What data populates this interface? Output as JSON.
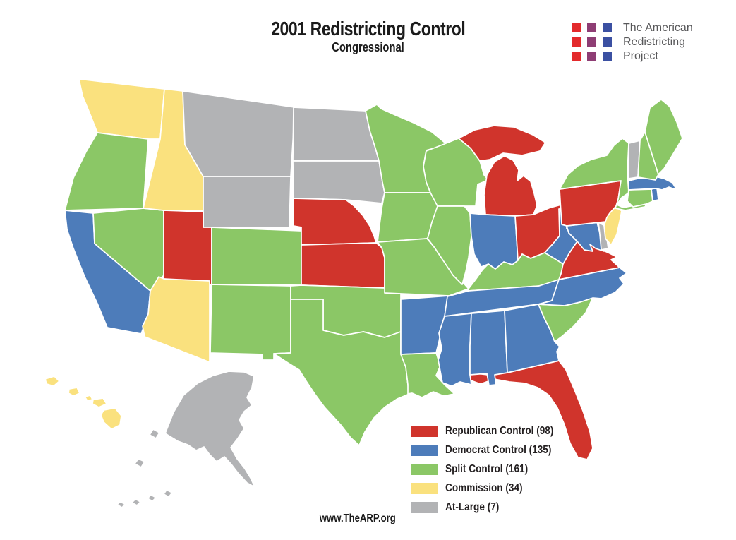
{
  "header": {
    "title": "2001 Redistricting Control",
    "subtitle": "Congressional"
  },
  "logo": {
    "line1": "The American",
    "line2": "Redistricting",
    "line3": "Project",
    "square_colors": [
      "#e32a2c",
      "#8e3d74",
      "#3b50a2"
    ],
    "text_color": "#58585a"
  },
  "footer": {
    "website": "www.TheARP.org"
  },
  "categories": {
    "republican": {
      "label": "Republican Control",
      "seats": 98,
      "color": "#d0342c"
    },
    "democrat": {
      "label": "Democrat Control",
      "seats": 135,
      "color": "#4d7cba"
    },
    "split": {
      "label": "Split Control",
      "seats": 161,
      "color": "#8bc766"
    },
    "commission": {
      "label": "Commission",
      "seats": 34,
      "color": "#fae17e"
    },
    "atlarge": {
      "label": "At-Large",
      "seats": 7,
      "color": "#b2b3b5"
    }
  },
  "legend": {
    "items": [
      {
        "key": "republican",
        "label": "Republican Control (98)"
      },
      {
        "key": "democrat",
        "label": "Democrat Control (135)"
      },
      {
        "key": "split",
        "label": "Split Control (161)"
      },
      {
        "key": "commission",
        "label": "Commission (34)"
      },
      {
        "key": "atlarge",
        "label": "At-Large (7)"
      }
    ]
  },
  "map": {
    "states": [
      {
        "id": "WA",
        "name": "Washington",
        "category": "commission"
      },
      {
        "id": "OR",
        "name": "Oregon",
        "category": "split"
      },
      {
        "id": "CA",
        "name": "California",
        "category": "democrat"
      },
      {
        "id": "NV",
        "name": "Nevada",
        "category": "split"
      },
      {
        "id": "ID",
        "name": "Idaho",
        "category": "commission"
      },
      {
        "id": "MT",
        "name": "Montana",
        "category": "atlarge"
      },
      {
        "id": "WY",
        "name": "Wyoming",
        "category": "atlarge"
      },
      {
        "id": "UT",
        "name": "Utah",
        "category": "republican"
      },
      {
        "id": "CO",
        "name": "Colorado",
        "category": "split"
      },
      {
        "id": "AZ",
        "name": "Arizona",
        "category": "commission"
      },
      {
        "id": "NM",
        "name": "New Mexico",
        "category": "split"
      },
      {
        "id": "ND",
        "name": "North Dakota",
        "category": "atlarge"
      },
      {
        "id": "SD",
        "name": "South Dakota",
        "category": "atlarge"
      },
      {
        "id": "NE",
        "name": "Nebraska",
        "category": "republican"
      },
      {
        "id": "KS",
        "name": "Kansas",
        "category": "republican"
      },
      {
        "id": "OK",
        "name": "Oklahoma",
        "category": "split"
      },
      {
        "id": "TX",
        "name": "Texas",
        "category": "split"
      },
      {
        "id": "MN",
        "name": "Minnesota",
        "category": "split"
      },
      {
        "id": "IA",
        "name": "Iowa",
        "category": "split"
      },
      {
        "id": "MO",
        "name": "Missouri",
        "category": "split"
      },
      {
        "id": "AR",
        "name": "Arkansas",
        "category": "democrat"
      },
      {
        "id": "LA",
        "name": "Louisiana",
        "category": "split"
      },
      {
        "id": "WI",
        "name": "Wisconsin",
        "category": "split"
      },
      {
        "id": "IL",
        "name": "Illinois",
        "category": "split"
      },
      {
        "id": "MI",
        "name": "Michigan",
        "category": "republican"
      },
      {
        "id": "IN",
        "name": "Indiana",
        "category": "democrat"
      },
      {
        "id": "OH",
        "name": "Ohio",
        "category": "republican"
      },
      {
        "id": "KY",
        "name": "Kentucky",
        "category": "split"
      },
      {
        "id": "TN",
        "name": "Tennessee",
        "category": "democrat"
      },
      {
        "id": "FL",
        "name": "Florida",
        "category": "republican"
      },
      {
        "id": "MS",
        "name": "Mississippi",
        "category": "democrat"
      },
      {
        "id": "AL",
        "name": "Alabama",
        "category": "democrat"
      },
      {
        "id": "GA",
        "name": "Georgia",
        "category": "democrat"
      },
      {
        "id": "SC",
        "name": "South Carolina",
        "category": "split"
      },
      {
        "id": "NC",
        "name": "North Carolina",
        "category": "democrat"
      },
      {
        "id": "VA",
        "name": "Virginia",
        "category": "republican"
      },
      {
        "id": "WV",
        "name": "West Virginia",
        "category": "democrat"
      },
      {
        "id": "MD",
        "name": "Maryland",
        "category": "democrat"
      },
      {
        "id": "DE",
        "name": "Delaware",
        "category": "atlarge"
      },
      {
        "id": "PA",
        "name": "Pennsylvania",
        "category": "republican"
      },
      {
        "id": "NJ",
        "name": "New Jersey",
        "category": "commission"
      },
      {
        "id": "NY",
        "name": "New York",
        "category": "split"
      },
      {
        "id": "CT",
        "name": "Connecticut",
        "category": "split"
      },
      {
        "id": "RI",
        "name": "Rhode Island",
        "category": "democrat"
      },
      {
        "id": "MA",
        "name": "Massachusetts",
        "category": "democrat"
      },
      {
        "id": "VT",
        "name": "Vermont",
        "category": "atlarge"
      },
      {
        "id": "NH",
        "name": "New Hampshire",
        "category": "split"
      },
      {
        "id": "ME",
        "name": "Maine",
        "category": "split"
      },
      {
        "id": "AK",
        "name": "Alaska",
        "category": "atlarge"
      },
      {
        "id": "HI",
        "name": "Hawaii",
        "category": "commission"
      }
    ]
  }
}
